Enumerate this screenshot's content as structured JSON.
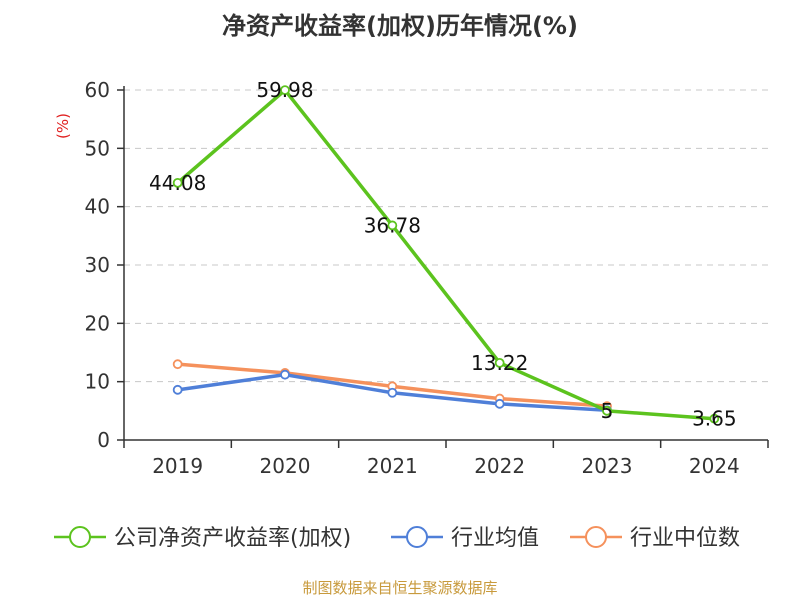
{
  "chart_data": {
    "type": "line",
    "title": "净资产收益率(加权)历年情况(%)",
    "ylabel": "(%)",
    "xlabel": "",
    "categories": [
      "2019",
      "2020",
      "2021",
      "2022",
      "2023",
      "2024"
    ],
    "ylim": [
      0,
      60
    ],
    "yticks": [
      0,
      10,
      20,
      30,
      40,
      50,
      60
    ],
    "grid": true,
    "legend_position": "bottom",
    "series": [
      {
        "name": "公司净资产收益率(加权)",
        "color": "#5cc31e",
        "values": [
          44.08,
          59.98,
          36.78,
          13.22,
          5,
          3.65
        ],
        "labels": [
          "44.08",
          "59.98",
          "36.78",
          "13.22",
          "5",
          "3.65"
        ]
      },
      {
        "name": "行业均值",
        "color": "#4f7fd8",
        "values": [
          8.6,
          11.2,
          8.1,
          6.2,
          5.1,
          null
        ]
      },
      {
        "name": "行业中位数",
        "color": "#f5915c",
        "values": [
          13.0,
          11.5,
          9.2,
          7.1,
          5.8,
          null
        ]
      }
    ],
    "source": "制图数据来自恒生聚源数据库"
  }
}
